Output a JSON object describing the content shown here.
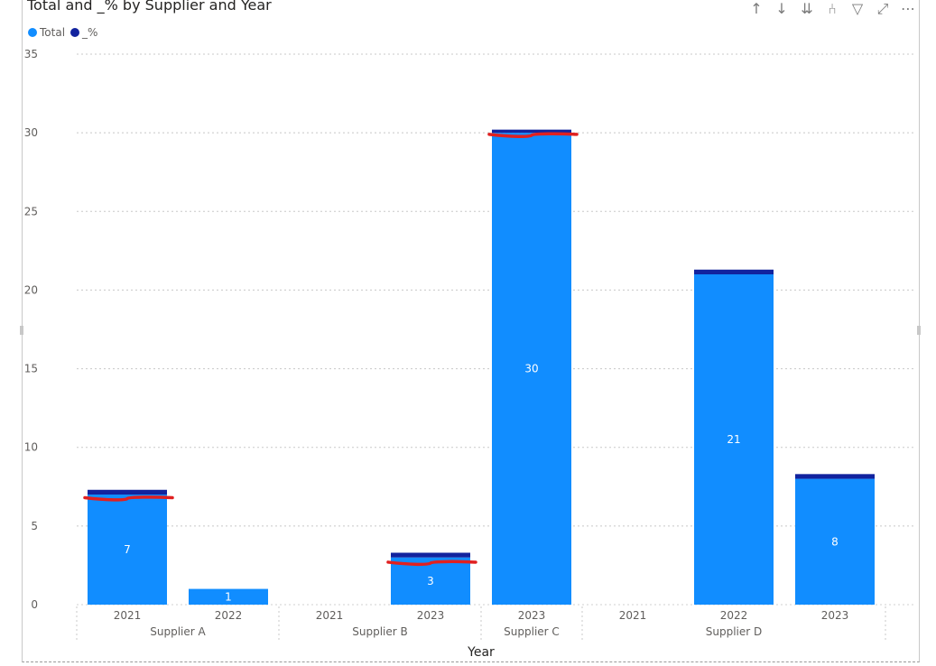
{
  "chart_data": {
    "type": "bar",
    "title": "Total and _% by Supplier and Year",
    "xlabel": "Year",
    "ylabel": "",
    "ylim": [
      0,
      35
    ],
    "yticks": [
      0,
      5,
      10,
      15,
      20,
      25,
      30,
      35
    ],
    "legend_position": "top-left",
    "grid": true,
    "groups": [
      {
        "name": "Supplier A",
        "categories": [
          "2021",
          "2022"
        ]
      },
      {
        "name": "Supplier B",
        "categories": [
          "2021",
          "2023"
        ]
      },
      {
        "name": "Supplier C",
        "categories": [
          "2023"
        ]
      },
      {
        "name": "Supplier D",
        "categories": [
          "2021",
          "2022",
          "2023"
        ]
      }
    ],
    "categories": [
      "2021",
      "2022",
      "2021",
      "2023",
      "2023",
      "2021",
      "2022",
      "2023"
    ],
    "series": [
      {
        "name": "Total",
        "color": "#118dff",
        "values": [
          7,
          1,
          null,
          3,
          30,
          null,
          21,
          8
        ],
        "labels": [
          "7",
          "1",
          "",
          "3",
          "30",
          "",
          "21",
          "8"
        ]
      },
      {
        "name": "_%",
        "color": "#12239e",
        "values": [
          0.3,
          0,
          null,
          0.3,
          0.2,
          null,
          0.3,
          0.3
        ]
      }
    ],
    "annotations": [
      {
        "type": "red-underline",
        "category_index": 0,
        "value": 6.8
      },
      {
        "type": "red-underline",
        "category_index": 3,
        "value": 2.7
      },
      {
        "type": "red-underline",
        "category_index": 4,
        "value": 29.9
      }
    ]
  },
  "toolbar": {
    "icons": [
      "arrow-up-icon",
      "arrow-down-icon",
      "double-arrow-down-icon",
      "expand-hierarchy-icon",
      "filter-icon",
      "focus-mode-icon",
      "more-options-icon"
    ],
    "glyphs": [
      "↑",
      "↓",
      "⇊",
      "⑃",
      "▽",
      "⤢",
      "⋯"
    ]
  }
}
